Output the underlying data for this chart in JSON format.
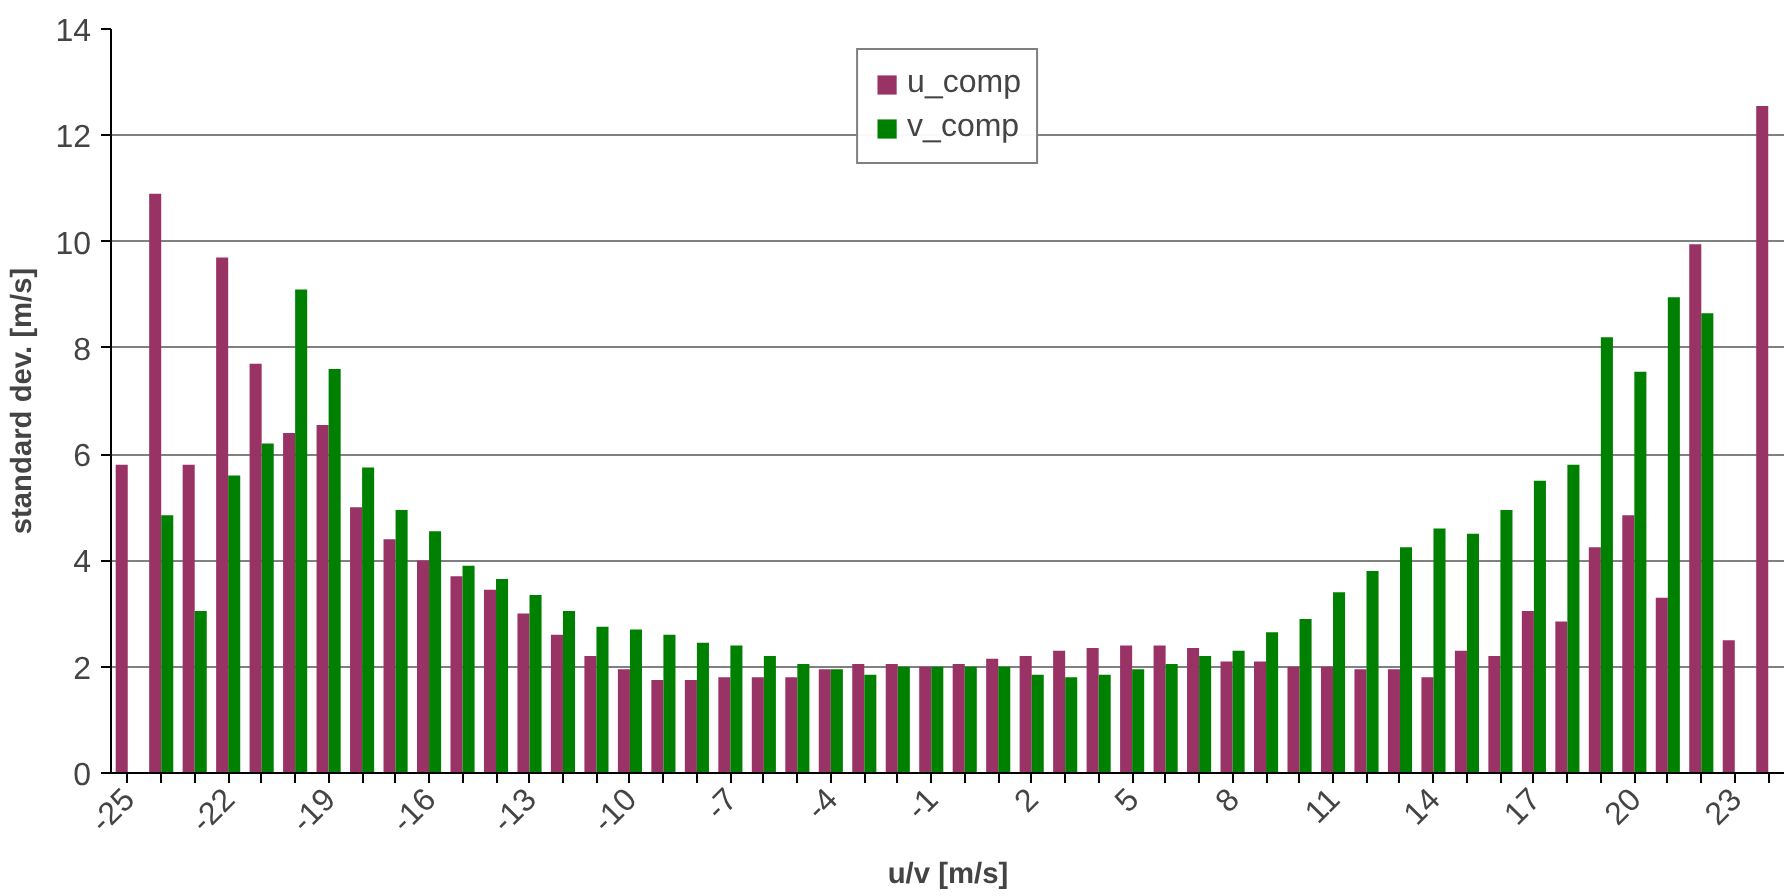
{
  "chart_data": {
    "type": "bar",
    "xlabel": "u/v [m/s]",
    "ylabel": "standard dev. [m/s]",
    "categories": [
      "-25",
      null,
      null,
      "-22",
      null,
      null,
      "-19",
      null,
      null,
      "-16",
      null,
      null,
      "-13",
      null,
      null,
      "-10",
      null,
      null,
      "-7",
      null,
      null,
      "-4",
      null,
      null,
      "-1",
      null,
      null,
      "2",
      null,
      null,
      "5",
      null,
      null,
      "8",
      null,
      null,
      "11",
      null,
      null,
      "14",
      null,
      null,
      "17",
      null,
      null,
      "20",
      null,
      null,
      "23",
      null
    ],
    "series": [
      {
        "name": "u_comp",
        "color": "#993366",
        "values": [
          5.8,
          10.9,
          5.8,
          9.7,
          7.7,
          6.4,
          6.55,
          5.0,
          4.4,
          4.0,
          3.7,
          3.45,
          3.0,
          2.6,
          2.2,
          1.95,
          1.75,
          1.75,
          1.8,
          1.8,
          1.8,
          1.95,
          2.05,
          2.05,
          2.0,
          2.05,
          2.15,
          2.2,
          2.3,
          2.35,
          2.4,
          2.4,
          2.35,
          2.1,
          2.1,
          2.0,
          2.0,
          1.95,
          1.95,
          1.8,
          2.3,
          2.2,
          3.05,
          2.85,
          4.25,
          4.85,
          3.3,
          9.95,
          2.5,
          12.55
        ]
      },
      {
        "name": "v_comp",
        "color": "#008000",
        "values": [
          null,
          4.85,
          3.05,
          5.6,
          6.2,
          9.1,
          7.6,
          5.75,
          4.95,
          4.55,
          3.9,
          3.65,
          3.35,
          3.05,
          2.75,
          2.7,
          2.6,
          2.45,
          2.4,
          2.2,
          2.05,
          1.95,
          1.85,
          2.0,
          2.0,
          2.0,
          2.0,
          1.85,
          1.8,
          1.85,
          1.95,
          2.05,
          2.2,
          2.3,
          2.65,
          2.9,
          3.4,
          3.8,
          4.25,
          4.6,
          4.5,
          4.95,
          5.5,
          5.8,
          8.2,
          7.55,
          8.95,
          8.65,
          null,
          null
        ]
      }
    ],
    "ylim": [
      0,
      14
    ],
    "yticks": [
      0,
      2,
      4,
      6,
      8,
      10,
      12,
      14
    ],
    "grid": "y",
    "legend": "top"
  }
}
